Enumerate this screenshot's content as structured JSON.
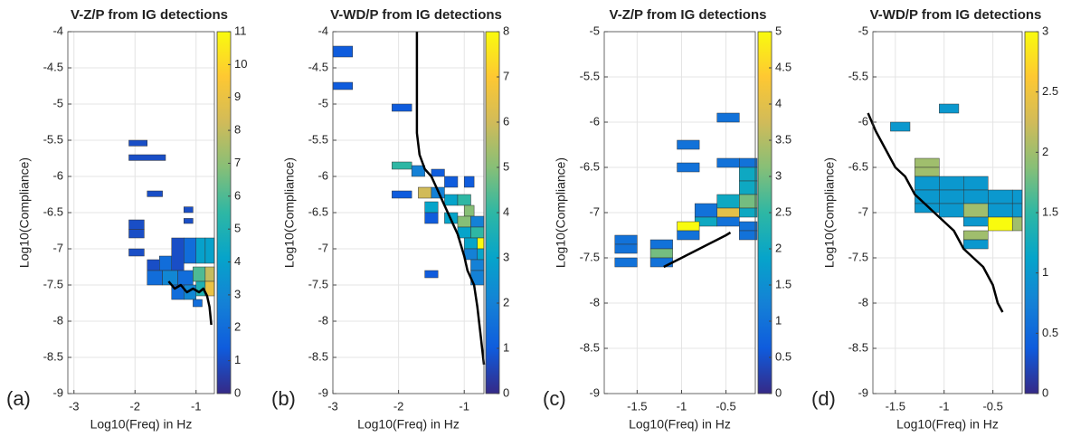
{
  "chart_data": [
    {
      "type": "heatmap",
      "title": "V-Z/P from IG detections",
      "panel_label": "(a)",
      "xlabel": "Log10(Freq) in Hz",
      "ylabel": "Log10(Compliance)",
      "xlim": [
        -3.1,
        -0.7
      ],
      "ylim": [
        -9,
        -4
      ],
      "xticks": [
        -3,
        -2,
        -1
      ],
      "yticks": [
        -9,
        -8.5,
        -8,
        -7.5,
        -7,
        -6.5,
        -6,
        -5.5,
        -5,
        -4.5,
        -4
      ],
      "grid": true,
      "clim": [
        0,
        11
      ],
      "cticks": [
        0,
        1,
        2,
        3,
        4,
        5,
        6,
        7,
        8,
        9,
        10,
        11
      ],
      "cells": [
        [
          -2.1,
          -1.8,
          -5.58,
          -5.5,
          1
        ],
        [
          -2.1,
          -1.5,
          -5.78,
          -5.7,
          1
        ],
        [
          -1.8,
          -1.55,
          -6.28,
          -6.2,
          1
        ],
        [
          -2.1,
          -1.85,
          -6.73,
          -6.6,
          1
        ],
        [
          -2.1,
          -1.85,
          -6.85,
          -6.73,
          1
        ],
        [
          -2.1,
          -1.85,
          -7.1,
          -7.0,
          1
        ],
        [
          -1.2,
          -1.05,
          -6.5,
          -6.42,
          1
        ],
        [
          -1.2,
          -1.05,
          -6.65,
          -6.58,
          1
        ],
        [
          -1.8,
          -1.55,
          -7.3,
          -7.15,
          1
        ],
        [
          -1.6,
          -1.4,
          -7.3,
          -7.1,
          2
        ],
        [
          -1.4,
          -1.2,
          -7.3,
          -6.85,
          1
        ],
        [
          -1.2,
          -1.0,
          -7.2,
          -6.85,
          2
        ],
        [
          -1.0,
          -0.85,
          -7.2,
          -6.85,
          4
        ],
        [
          -0.85,
          -0.7,
          -7.2,
          -6.85,
          4
        ],
        [
          -1.8,
          -1.55,
          -7.5,
          -7.3,
          2
        ],
        [
          -1.55,
          -1.3,
          -7.5,
          -7.3,
          3
        ],
        [
          -1.3,
          -1.05,
          -7.5,
          -7.3,
          2
        ],
        [
          -1.05,
          -0.85,
          -7.45,
          -7.25,
          6
        ],
        [
          -0.85,
          -0.7,
          -7.45,
          -7.25,
          8
        ],
        [
          -1.4,
          -1.2,
          -7.7,
          -7.5,
          2
        ],
        [
          -1.2,
          -1.0,
          -7.7,
          -7.5,
          3
        ],
        [
          -1.0,
          -0.85,
          -7.65,
          -7.45,
          5
        ],
        [
          -0.85,
          -0.7,
          -7.65,
          -7.45,
          9
        ],
        [
          -1.05,
          -0.9,
          -7.8,
          -7.7,
          2
        ]
      ],
      "line": {
        "color": "#000000",
        "x": [
          -1.45,
          -1.35,
          -1.25,
          -1.15,
          -1.05,
          -0.95,
          -0.88,
          -0.82,
          -0.78,
          -0.75
        ],
        "y": [
          -7.45,
          -7.55,
          -7.5,
          -7.6,
          -7.55,
          -7.6,
          -7.55,
          -7.65,
          -7.8,
          -8.05
        ]
      }
    },
    {
      "type": "heatmap",
      "title": "V-WD/P from IG detections",
      "panel_label": "(b)",
      "xlabel": "Log10(Freq) in Hz",
      "ylabel": "Log10(Compliance)",
      "xlim": [
        -3,
        -0.7
      ],
      "ylim": [
        -9,
        -4
      ],
      "xticks": [
        -3,
        -2,
        -1
      ],
      "yticks": [
        -9,
        -8.5,
        -8,
        -7.5,
        -7,
        -6.5,
        -6,
        -5.5,
        -5,
        -4.5,
        -4
      ],
      "grid": true,
      "clim": [
        0,
        8
      ],
      "cticks": [
        0,
        1,
        2,
        3,
        4,
        5,
        6,
        7,
        8
      ],
      "cells": [
        [
          -3,
          -2.7,
          -4.35,
          -4.2,
          1
        ],
        [
          -3,
          -2.7,
          -4.8,
          -4.7,
          1
        ],
        [
          -2.1,
          -1.8,
          -5.1,
          -5.0,
          1
        ],
        [
          -2.1,
          -1.8,
          -5.9,
          -5.8,
          4
        ],
        [
          -2.1,
          -1.8,
          -6.3,
          -6.2,
          1
        ],
        [
          -1.8,
          -1.6,
          -6.0,
          -5.85,
          2
        ],
        [
          -1.5,
          -1.3,
          -6.0,
          -5.9,
          1
        ],
        [
          -1.3,
          -1.1,
          -6.15,
          -6.0,
          1
        ],
        [
          -1.0,
          -0.85,
          -6.15,
          -6.0,
          1
        ],
        [
          -1.7,
          -1.5,
          -6.3,
          -6.15,
          6
        ],
        [
          -1.5,
          -1.3,
          -6.3,
          -6.15,
          2
        ],
        [
          -1.3,
          -1.1,
          -6.4,
          -6.25,
          3
        ],
        [
          -1.1,
          -0.9,
          -6.4,
          -6.25,
          4
        ],
        [
          -1.6,
          -1.4,
          -6.5,
          -6.35,
          3
        ],
        [
          -1.0,
          -0.85,
          -6.55,
          -6.4,
          5
        ],
        [
          -1.6,
          -1.4,
          -6.65,
          -6.5,
          1
        ],
        [
          -1.3,
          -1.1,
          -6.65,
          -6.5,
          3
        ],
        [
          -1.1,
          -0.9,
          -6.7,
          -6.55,
          5
        ],
        [
          -0.9,
          -0.7,
          -6.7,
          -6.55,
          2
        ],
        [
          -1.1,
          -0.9,
          -6.85,
          -6.7,
          3
        ],
        [
          -0.9,
          -0.7,
          -6.85,
          -6.7,
          4
        ],
        [
          -1.0,
          -0.8,
          -7.0,
          -6.85,
          3
        ],
        [
          -0.8,
          -0.7,
          -7.0,
          -6.85,
          8
        ],
        [
          -1.0,
          -0.8,
          -7.15,
          -7.0,
          2
        ],
        [
          -0.8,
          -0.7,
          -7.15,
          -7.0,
          3
        ],
        [
          -1.6,
          -1.4,
          -7.4,
          -7.3,
          1
        ],
        [
          -0.9,
          -0.7,
          -7.3,
          -7.15,
          2
        ],
        [
          -0.9,
          -0.7,
          -7.5,
          -7.3,
          2
        ]
      ],
      "line": {
        "color": "#000000",
        "x": [
          -1.72,
          -1.72,
          -1.68,
          -1.6,
          -1.5,
          -1.4,
          -1.3,
          -1.2,
          -1.1,
          -1.0,
          -0.95,
          -0.85,
          -0.8,
          -0.75,
          -0.7
        ],
        "y": [
          -4,
          -5.4,
          -5.7,
          -5.9,
          -6.0,
          -6.2,
          -6.4,
          -6.6,
          -6.8,
          -7.1,
          -7.3,
          -7.5,
          -7.8,
          -8.2,
          -8.6
        ]
      }
    },
    {
      "type": "heatmap",
      "title": "V-Z/P from IG detections",
      "panel_label": "(c)",
      "xlabel": "Log10(Freq) in Hz",
      "ylabel": "Log10(Compliance)",
      "xlim": [
        -1.87,
        -0.17
      ],
      "ylim": [
        -9,
        -5
      ],
      "xticks": [
        -1.5,
        -1,
        -0.5
      ],
      "yticks": [
        -9,
        -8.5,
        -8,
        -7.5,
        -7,
        -6.5,
        -6,
        -5.5,
        -5
      ],
      "grid": true,
      "clim": [
        0,
        5
      ],
      "cticks": [
        0,
        0.5,
        1,
        1.5,
        2,
        2.5,
        3,
        3.5,
        4,
        4.5,
        5
      ],
      "cells": [
        [
          -0.6,
          -0.35,
          -6.0,
          -5.9,
          1
        ],
        [
          -1.05,
          -0.8,
          -6.3,
          -6.2,
          1
        ],
        [
          -1.05,
          -0.8,
          -6.55,
          -6.45,
          1
        ],
        [
          -0.6,
          -0.35,
          -6.5,
          -6.4,
          1
        ],
        [
          -0.35,
          -0.15,
          -6.5,
          -6.4,
          1
        ],
        [
          -0.35,
          -0.15,
          -6.65,
          -6.5,
          2
        ],
        [
          -0.35,
          -0.15,
          -6.8,
          -6.65,
          2
        ],
        [
          -0.6,
          -0.35,
          -6.95,
          -6.8,
          2
        ],
        [
          -0.35,
          -0.15,
          -6.95,
          -6.8,
          3
        ],
        [
          -0.85,
          -0.6,
          -7.05,
          -6.9,
          1
        ],
        [
          -0.6,
          -0.35,
          -7.05,
          -6.95,
          4
        ],
        [
          -0.35,
          -0.15,
          -7.05,
          -6.95,
          2
        ],
        [
          -0.85,
          -0.6,
          -7.15,
          -7.05,
          2
        ],
        [
          -0.6,
          -0.35,
          -7.15,
          -7.05,
          1
        ],
        [
          -1.05,
          -0.8,
          -7.2,
          -7.1,
          5
        ],
        [
          -1.05,
          -0.8,
          -7.3,
          -7.2,
          1
        ],
        [
          -0.35,
          -0.15,
          -7.2,
          -7.1,
          1
        ],
        [
          -0.35,
          -0.15,
          -7.3,
          -7.2,
          1
        ],
        [
          -1.75,
          -1.5,
          -7.35,
          -7.25,
          1
        ],
        [
          -1.75,
          -1.5,
          -7.45,
          -7.35,
          1
        ],
        [
          -1.35,
          -1.1,
          -7.4,
          -7.3,
          1
        ],
        [
          -1.35,
          -1.1,
          -7.5,
          -7.4,
          3
        ],
        [
          -1.75,
          -1.5,
          -7.6,
          -7.5,
          1
        ],
        [
          -1.35,
          -1.1,
          -7.6,
          -7.5,
          1
        ]
      ],
      "line": {
        "color": "#000000",
        "x": [
          -1.2,
          -1.1,
          -1.0,
          -0.9,
          -0.8,
          -0.7,
          -0.6,
          -0.5,
          -0.45
        ],
        "y": [
          -7.6,
          -7.55,
          -7.5,
          -7.45,
          -7.4,
          -7.35,
          -7.3,
          -7.25,
          -7.22
        ]
      }
    },
    {
      "type": "heatmap",
      "title": "V-WD/P from IG detections",
      "panel_label": "(d)",
      "xlabel": "Log10(Freq) in Hz",
      "ylabel": "Log10(Compliance)",
      "xlim": [
        -1.73,
        -0.2
      ],
      "ylim": [
        -9,
        -5
      ],
      "xticks": [
        -1.5,
        -1,
        -0.5
      ],
      "yticks": [
        -9,
        -8.5,
        -8,
        -7.5,
        -7,
        -6.5,
        -6,
        -5.5,
        -5
      ],
      "grid": true,
      "clim": [
        0,
        3
      ],
      "cticks": [
        0,
        0.5,
        1,
        1.5,
        2,
        2.5,
        3
      ],
      "cells": [
        [
          -1.55,
          -1.35,
          -6.1,
          -6.0,
          1
        ],
        [
          -1.05,
          -0.85,
          -5.9,
          -5.8,
          1
        ],
        [
          -1.3,
          -1.05,
          -6.5,
          -6.4,
          2
        ],
        [
          -1.3,
          -1.05,
          -6.6,
          -6.5,
          2
        ],
        [
          -1.3,
          -1.05,
          -6.75,
          -6.6,
          1
        ],
        [
          -1.05,
          -0.8,
          -6.75,
          -6.6,
          1
        ],
        [
          -0.8,
          -0.55,
          -6.75,
          -6.6,
          1
        ],
        [
          -1.3,
          -1.05,
          -6.9,
          -6.75,
          1
        ],
        [
          -1.05,
          -0.8,
          -6.9,
          -6.75,
          1
        ],
        [
          -0.8,
          -0.55,
          -6.9,
          -6.75,
          1
        ],
        [
          -0.55,
          -0.3,
          -6.9,
          -6.75,
          1
        ],
        [
          -0.3,
          -0.2,
          -6.9,
          -6.75,
          1
        ],
        [
          -1.3,
          -1.05,
          -7.0,
          -6.9,
          1
        ],
        [
          -1.05,
          -0.8,
          -7.05,
          -6.9,
          1
        ],
        [
          -0.8,
          -0.55,
          -7.05,
          -6.9,
          2
        ],
        [
          -0.55,
          -0.3,
          -7.05,
          -6.9,
          1
        ],
        [
          -0.3,
          -0.2,
          -7.05,
          -6.9,
          1
        ],
        [
          -0.8,
          -0.55,
          -7.15,
          -7.05,
          1
        ],
        [
          -0.55,
          -0.3,
          -7.2,
          -7.05,
          3
        ],
        [
          -0.3,
          -0.2,
          -7.2,
          -7.05,
          2
        ],
        [
          -0.8,
          -0.55,
          -7.3,
          -7.2,
          2
        ],
        [
          -0.8,
          -0.55,
          -7.4,
          -7.3,
          1
        ]
      ],
      "line": {
        "color": "#000000",
        "x": [
          -1.78,
          -1.7,
          -1.6,
          -1.5,
          -1.4,
          -1.3,
          -1.2,
          -1.1,
          -1.0,
          -0.9,
          -0.8,
          -0.7,
          -0.6,
          -0.5,
          -0.45,
          -0.4
        ],
        "y": [
          -5.9,
          -6.1,
          -6.3,
          -6.5,
          -6.6,
          -6.8,
          -6.9,
          -7.0,
          -7.1,
          -7.2,
          -7.4,
          -7.5,
          -7.6,
          -7.8,
          -8.0,
          -8.1
        ]
      }
    }
  ]
}
